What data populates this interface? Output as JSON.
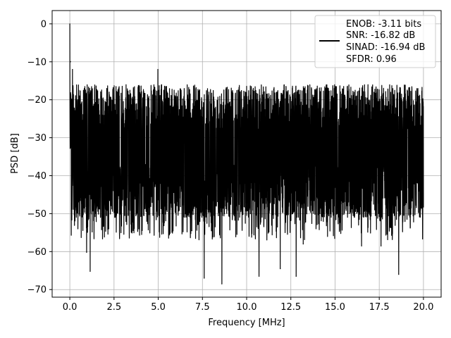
{
  "chart_data": {
    "type": "line",
    "title": "",
    "xlabel": "Frequency [MHz]",
    "ylabel": "PSD [dB]",
    "xlim": [
      -1,
      21
    ],
    "ylim": [
      -72,
      3.5
    ],
    "xticks": [
      0,
      2.5,
      5,
      7.5,
      10,
      12.5,
      15,
      17.5,
      20
    ],
    "xtick_labels": [
      "0.0",
      "2.5",
      "5.0",
      "7.5",
      "10.0",
      "12.5",
      "15.0",
      "17.5",
      "20.0"
    ],
    "yticks": [
      0,
      -10,
      -20,
      -30,
      -40,
      -50,
      -60,
      -70
    ],
    "ytick_labels": [
      "0",
      "−10",
      "−20",
      "−30",
      "−40",
      "−50",
      "−60",
      "−70"
    ],
    "grid": true,
    "legend_position": "top-right",
    "series": [
      {
        "color": "#000000",
        "x_range_mhz": [
          0,
          20
        ],
        "envelope_upper_db": -17,
        "envelope_lower_db": -45,
        "spur_peaks": [
          {
            "x": 0.0,
            "y": 0.0
          },
          {
            "x": 0.05,
            "y": -10
          },
          {
            "x": 0.15,
            "y": -12
          },
          {
            "x": 4.98,
            "y": -12
          }
        ],
        "deep_dips": [
          {
            "x": 0.95,
            "y": -60.2
          },
          {
            "x": 1.15,
            "y": -65.2
          },
          {
            "x": 2.2,
            "y": -54
          },
          {
            "x": 3.9,
            "y": -54
          },
          {
            "x": 4.35,
            "y": -52
          },
          {
            "x": 6.9,
            "y": -54.5
          },
          {
            "x": 7.6,
            "y": -67.0
          },
          {
            "x": 8.6,
            "y": -68.5
          },
          {
            "x": 10.7,
            "y": -66.5
          },
          {
            "x": 11.9,
            "y": -64.5
          },
          {
            "x": 12.8,
            "y": -66.5
          },
          {
            "x": 13.2,
            "y": -58.0
          },
          {
            "x": 16.5,
            "y": -58.5
          },
          {
            "x": 17.6,
            "y": -58.5
          },
          {
            "x": 18.6,
            "y": -66.0
          }
        ]
      }
    ]
  },
  "legend": {
    "lines": [
      "ENOB: -3.11 bits",
      "SNR: -16.82 dB",
      "SINAD: -16.94 dB",
      "SFDR: 0.96"
    ]
  }
}
